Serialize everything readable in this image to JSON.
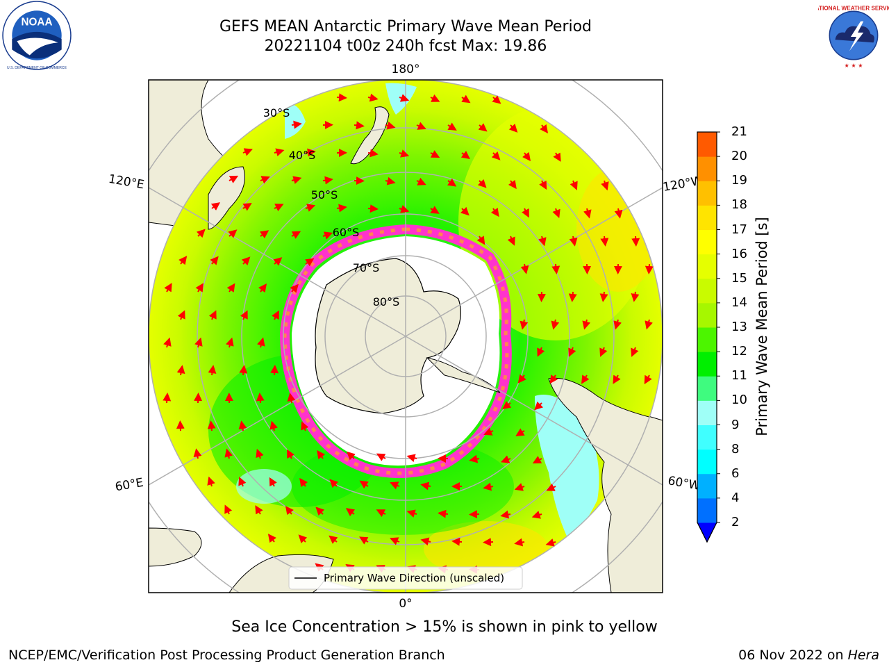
{
  "header": {
    "title_line1": "GEFS MEAN Antarctic Primary Wave Mean Period",
    "title_line2": "20221104 t00z 240h fcst   Max: 19.86"
  },
  "logos": {
    "noaa": "NOAA",
    "nws": "NATIONAL WEATHER SERVICE"
  },
  "map": {
    "projection": "south-polar-stereographic",
    "lon_labels": {
      "top": "180°",
      "bottom": "0°",
      "upper_left": "120°E",
      "lower_left": "60°E",
      "upper_right": "120°W",
      "lower_right": "60°W"
    },
    "lat_labels": [
      "30°S",
      "40°S",
      "50°S",
      "60°S",
      "70°S",
      "80°S"
    ],
    "legend_label": "Primary Wave Direction (unscaled)"
  },
  "colorbar": {
    "label": "Primary Wave Mean Period [s]",
    "ticks": [
      "2",
      "4",
      "6",
      "8",
      "9",
      "10",
      "11",
      "12",
      "13",
      "14",
      "15",
      "16",
      "17",
      "18",
      "19",
      "20",
      "21"
    ],
    "colors": [
      "#0070ff",
      "#00b0ff",
      "#00ffff",
      "#40ffff",
      "#9ffff7",
      "#3ffb7f",
      "#00ef00",
      "#4cf500",
      "#a6f700",
      "#c9fb00",
      "#e5ff00",
      "#ffff00",
      "#ffe400",
      "#ffc000",
      "#ff9000",
      "#ff5a00",
      "#ff2000",
      "#ff0000"
    ],
    "extend_color": "#0000ff"
  },
  "caption": "Sea Ice Concentration > 15% is shown in pink to yellow",
  "footer": {
    "left": "NCEP/EMC/Verification Post Processing Product Generation Branch",
    "right_date": "06 Nov 2022 on",
    "right_host": "Hera"
  }
}
